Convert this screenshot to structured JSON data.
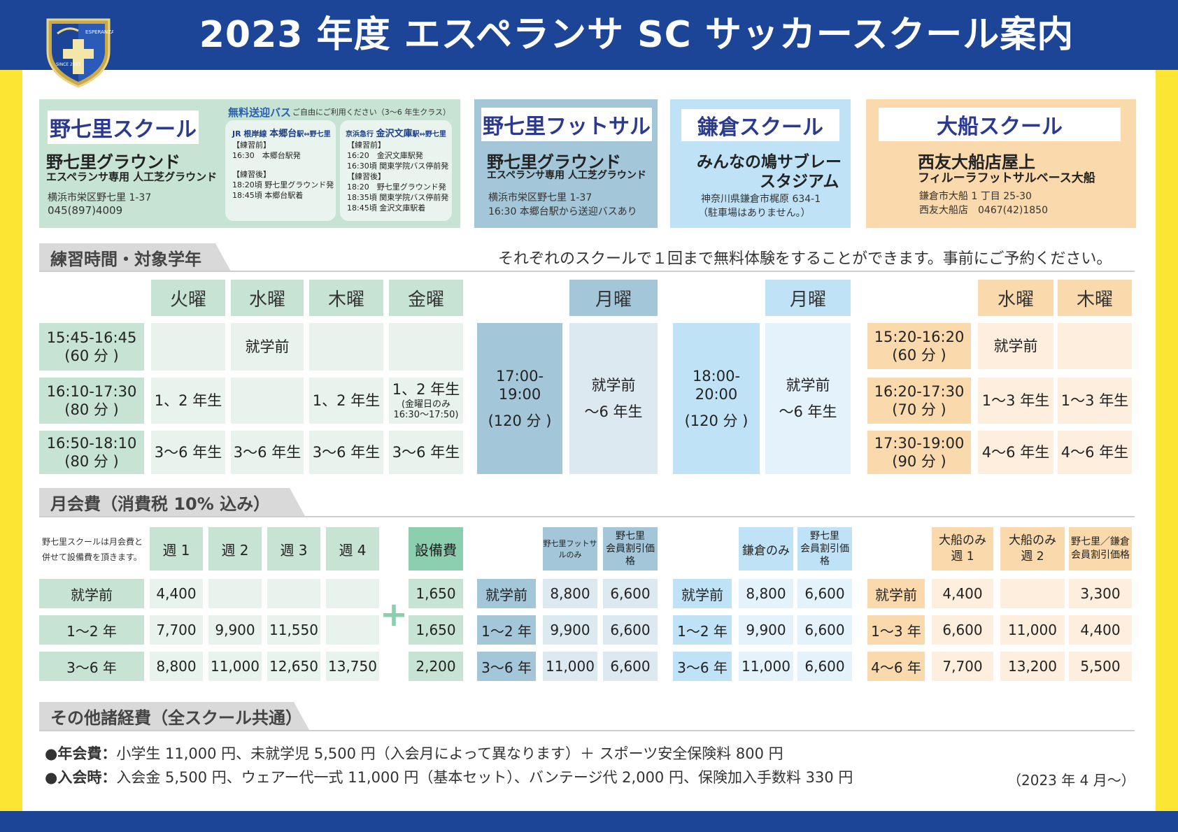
{
  "title": "2023 年度 エスペランサ SC サッカースクール案内",
  "logo": {
    "text_top": "ESPERANZA",
    "text_bottom": "SINCE 2003",
    "icon": "shield-cross-crest"
  },
  "colors": {
    "navy": "#1d4597",
    "yellow": "#fce633",
    "green": "#c6e3d3",
    "teal": "#a3c6d8",
    "skyblue": "#bfe2f7",
    "orange": "#fad9ac"
  },
  "schools": {
    "nanasato": {
      "name": "野七里スクール",
      "ground": "野七里グラウンド",
      "sub": "エスペランサ専用 人工芝グラウンド",
      "addr": "横浜市栄区野七里 1-37",
      "tel": "045(897)4009",
      "bus_title": "無料送迎バス",
      "bus_note": "ご自由にご利用ください（3～6 年生クラス）",
      "busA": {
        "line": "JR 根岸線",
        "station": "本郷台",
        "route": "駅⇔野七里",
        "before": "【練習前】",
        "b1": "16:30　本郷台駅発",
        "after": "【練習後】",
        "a1": "18:20頃 野七里グラウンド発",
        "a2": "18:45頃 本郷台駅着"
      },
      "busB": {
        "line": "京浜急行",
        "station": "金沢文庫",
        "route": "駅⇔野七里",
        "before": "【練習前】",
        "b1": "16:20　金沢文庫駅発",
        "b2": "16:30頃 関東学院バス停前発",
        "after": "【練習後】",
        "a1": "18:20　野七里グラウンド発",
        "a2": "18:35頃 関東学院バス停前発",
        "a3": "18:45頃 金沢文庫駅着"
      }
    },
    "futsal": {
      "name": "野七里フットサル",
      "ground": "野七里グラウンド",
      "sub": "エスペランサ専用 人工芝グラウンド",
      "addr": "横浜市栄区野七里 1-37",
      "note": "16:30 本郷台駅から送迎バスあり"
    },
    "kamakura": {
      "name": "鎌倉スクール",
      "ground1": "みんなの鳩サブレー",
      "ground2": "スタジアム",
      "addr": "神奈川県鎌倉市梶原 634-1",
      "note": "（駐車場はありません。）"
    },
    "ofuna": {
      "name": "大船スクール",
      "ground1": "西友大船店屋上",
      "ground2": "フィルーラフットサルベース大船",
      "addr": "鎌倉市大船 1 丁目 25-30",
      "tel": "西友大船店　0467(42)1850"
    }
  },
  "section1": {
    "label": "練習時間・対象学年",
    "note": "それぞれのスクールで１回まで無料体験をすることができます。事前にご予約ください。"
  },
  "schedule": {
    "nanasato": {
      "days": [
        "火曜",
        "水曜",
        "木曜",
        "金曜"
      ],
      "rows": [
        {
          "time": "15:45-16:45",
          "dur": "(60 分 )",
          "cells": [
            "",
            "就学前",
            "",
            ""
          ]
        },
        {
          "time": "16:10-17:30",
          "dur": "(80 分 )",
          "cells": [
            "1、2 年生",
            "",
            "1、2 年生",
            "1、2 年生"
          ],
          "note": "(金曜日のみ",
          "note2": "16:30～17:50)"
        },
        {
          "time": "16:50-18:10",
          "dur": "(80 分 )",
          "cells": [
            "3～6 年生",
            "3～6 年生",
            "3～6 年生",
            "3～6 年生"
          ]
        }
      ]
    },
    "futsal": {
      "day": "月曜",
      "time": "17:00-19:00",
      "dur": "(120 分 )",
      "grade1": "就学前",
      "grade2": "～6 年生"
    },
    "kamakura": {
      "day": "月曜",
      "time": "18:00-20:00",
      "dur": "(120 分 )",
      "grade1": "就学前",
      "grade2": "～6 年生"
    },
    "ofuna": {
      "days": [
        "水曜",
        "木曜"
      ],
      "rows": [
        {
          "time": "15:20-16:20",
          "dur": "(60 分 )",
          "cells": [
            "就学前",
            ""
          ]
        },
        {
          "time": "16:20-17:30",
          "dur": "(70 分 )",
          "cells": [
            "1～3 年生",
            "1～3 年生"
          ]
        },
        {
          "time": "17:30-19:00",
          "dur": "(90 分 )",
          "cells": [
            "4～6 年生",
            "4～6 年生"
          ]
        }
      ]
    }
  },
  "section2": {
    "label": "月会費（消費税 10% 込み）"
  },
  "fees": {
    "nanasato": {
      "note1": "野七里スクールは月会費と",
      "note2": "併せて設備費を頂きます。",
      "cols": [
        "週 1",
        "週 2",
        "週 3",
        "週 4"
      ],
      "rows": [
        {
          "label": "就学前",
          "vals": [
            "4,400",
            "",
            "",
            ""
          ]
        },
        {
          "label": "1～2 年",
          "vals": [
            "7,700",
            "9,900",
            "11,550",
            ""
          ]
        },
        {
          "label": "3～6 年",
          "vals": [
            "8,800",
            "11,000",
            "12,650",
            "13,750"
          ]
        }
      ]
    },
    "facility": {
      "col": "設備費",
      "plus": "+",
      "vals": [
        "1,650",
        "1,650",
        "2,200"
      ]
    },
    "futsal": {
      "cols": [
        "野七里フットサルのみ",
        "野七里",
        "会員割引価格"
      ],
      "rows": [
        {
          "label": "就学前",
          "vals": [
            "8,800",
            "6,600"
          ]
        },
        {
          "label": "1～2 年",
          "vals": [
            "9,900",
            "6,600"
          ]
        },
        {
          "label": "3～6 年",
          "vals": [
            "11,000",
            "6,600"
          ]
        }
      ]
    },
    "kamakura": {
      "cols": [
        "鎌倉のみ",
        "野七里",
        "会員割引価格"
      ],
      "rows": [
        {
          "label": "就学前",
          "vals": [
            "8,800",
            "6,600"
          ]
        },
        {
          "label": "1～2 年",
          "vals": [
            "9,900",
            "6,600"
          ]
        },
        {
          "label": "3～6 年",
          "vals": [
            "11,000",
            "6,600"
          ]
        }
      ]
    },
    "ofuna": {
      "cols": [
        "大船のみ",
        "週 1",
        "大船のみ",
        "週 2",
        "野七里／鎌倉",
        "会員割引価格"
      ],
      "rows": [
        {
          "label": "就学前",
          "vals": [
            "4,400",
            "",
            "3,300"
          ]
        },
        {
          "label": "1～3 年",
          "vals": [
            "6,600",
            "11,000",
            "4,400"
          ]
        },
        {
          "label": "4～6 年",
          "vals": [
            "7,700",
            "13,200",
            "5,500"
          ]
        }
      ]
    }
  },
  "section3": {
    "label": "その他諸経費（全スクール共通）",
    "line1_label": "●年会費：",
    "line1_text": "小学生 11,000 円、未就学児 5,500 円（入会月によって異なります）＋ スポーツ安全保険料 800 円",
    "line2_label": "●入会時：",
    "line2_text": "入会金 5,500 円、ウェアー代一式 11,000 円（基本セット）、バンテージ代 2,000 円、保険加入手数料 330 円",
    "date": "（2023 年 4 月～）"
  }
}
